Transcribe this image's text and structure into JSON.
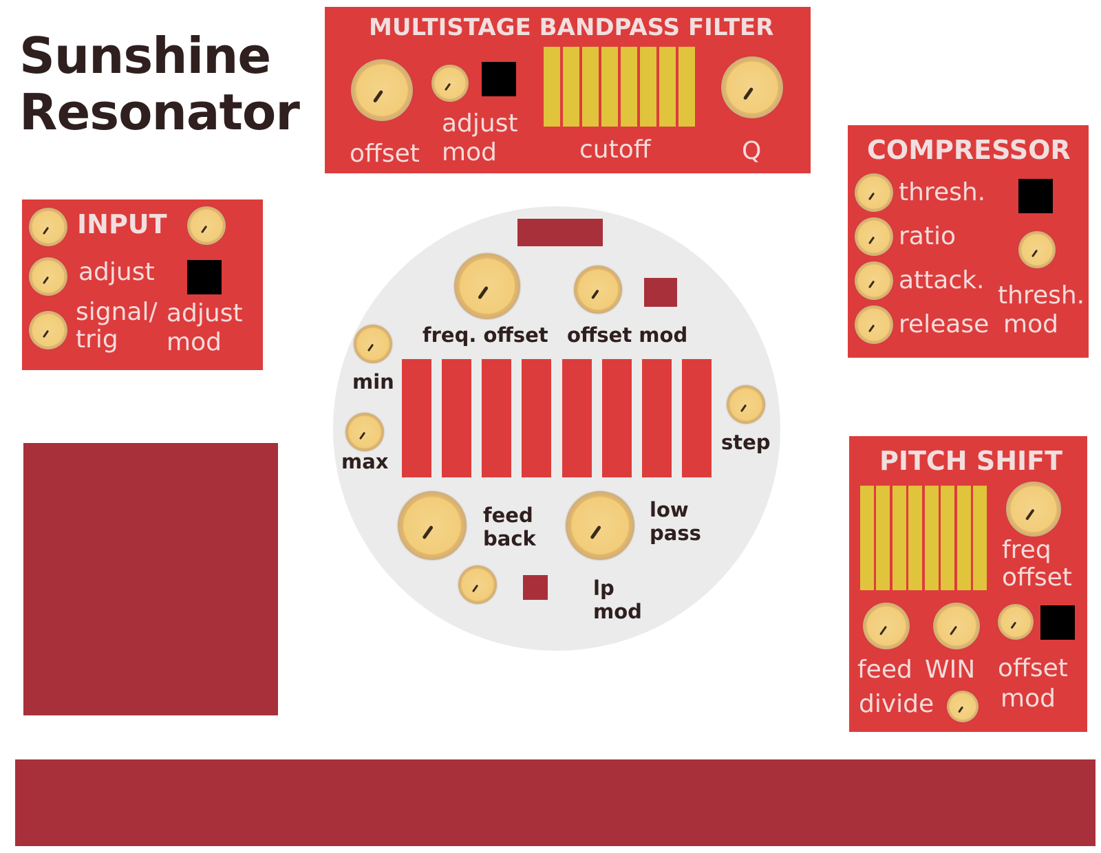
{
  "title": {
    "line1": "Sunshine",
    "line2": "Resonator"
  },
  "bandpass": {
    "header": "MULTISTAGE BANDPASS FILTER",
    "offset_label": "offset",
    "adjust_mod_label_1": "adjust",
    "adjust_mod_label_2": "mod",
    "cutoff_label": "cutoff",
    "q_label": "Q",
    "cutoff_steps": 8
  },
  "input": {
    "header": "INPUT",
    "adjust_label": "adjust",
    "signal_trig_label_1": "signal/",
    "signal_trig_label_2": "trig",
    "adjust_mod_label_1": "adjust",
    "adjust_mod_label_2": "mod"
  },
  "compressor": {
    "header": "COMPRESSOR",
    "thresh_label": "thresh.",
    "ratio_label": "ratio",
    "attack_label": "attack.",
    "release_label": "release",
    "thresh_mod_label_1": "thresh.",
    "thresh_mod_label_2": "mod"
  },
  "pitch_shift": {
    "header": "PITCH SHIFT",
    "freq_offset_label_1": "freq",
    "freq_offset_label_2": "offset",
    "feed_label": "feed",
    "win_label": "WIN",
    "divide_label": "divide",
    "offset_mod_label_1": "offset",
    "offset_mod_label_2": "mod",
    "steps": 8
  },
  "resonator": {
    "freq_offset_label": "freq. offset",
    "offset_mod_label": "offset mod",
    "min_label": "min",
    "max_label": "max",
    "step_label": "step",
    "feedback_label_1": "feed",
    "feedback_label_2": "back",
    "lowpass_label_1": "low",
    "lowpass_label_2": "pass",
    "lp_mod_label_1": "lp",
    "lp_mod_label_2": "mod",
    "sequencer_steps": 8
  },
  "colors": {
    "panel": "#dd3c3c",
    "dark_panel": "#a8303a",
    "circle": "#ebebeb",
    "step_yellow": "#e0c43c",
    "title": "#2f1f1f"
  }
}
